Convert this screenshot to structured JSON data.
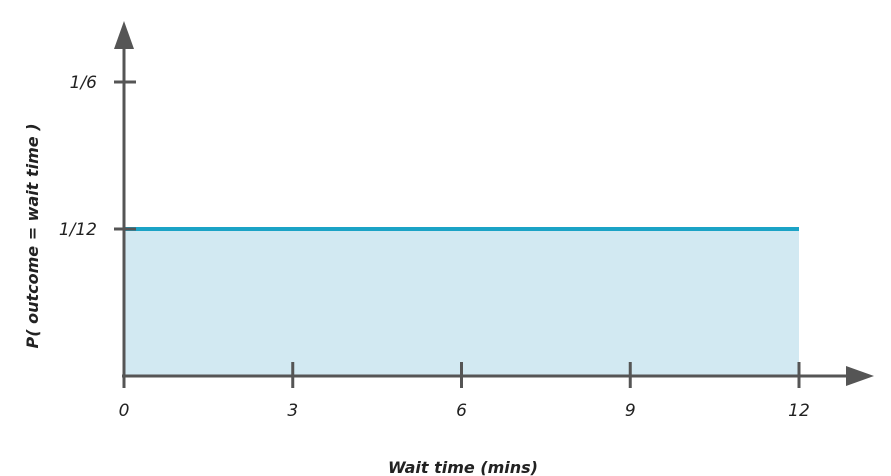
{
  "chart_data": {
    "type": "area",
    "title": "",
    "xlabel": "Wait time (mins)",
    "ylabel": "P( outcome  = wait time )",
    "x": [
      0,
      12
    ],
    "y": [
      0.0833333,
      0.0833333
    ],
    "xlim": [
      0,
      12
    ],
    "ylim": [
      0,
      0.1666667
    ],
    "x_ticks": [
      {
        "value": 0,
        "label": "0"
      },
      {
        "value": 3,
        "label": "3"
      },
      {
        "value": 6,
        "label": "6"
      },
      {
        "value": 9,
        "label": "9"
      },
      {
        "value": 12,
        "label": "12"
      }
    ],
    "y_ticks": [
      {
        "value": 0.1666667,
        "label": "1/6"
      },
      {
        "value": 0.0833333,
        "label": "1/12"
      }
    ],
    "grid": false,
    "legend": "none",
    "colors": {
      "line": "#1ba3c6",
      "fill": "#d2e9f2",
      "axis": "#555555"
    }
  }
}
